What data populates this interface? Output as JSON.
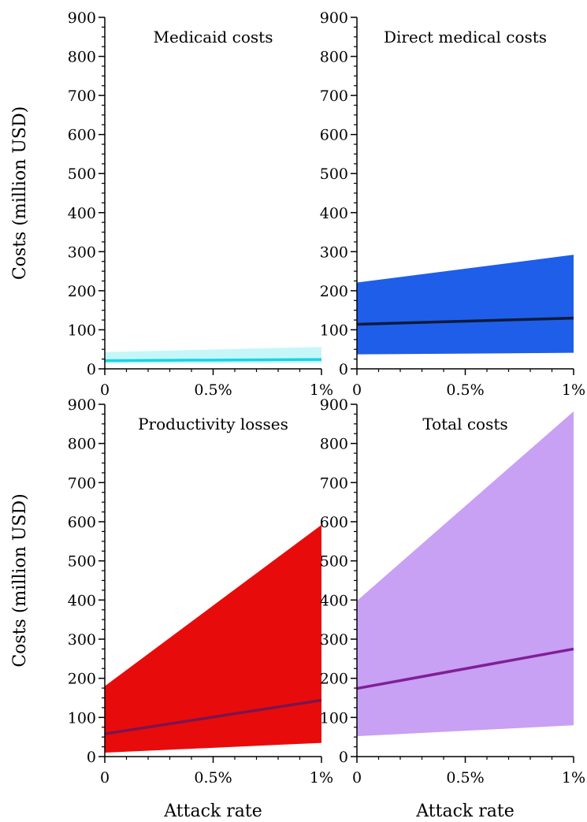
{
  "chart_data": [
    {
      "type": "area",
      "title": "Medicaid costs",
      "xlabel": "",
      "ylabel": "Costs (million USD)",
      "x": [
        0,
        1
      ],
      "xticks": [
        {
          "value": 0,
          "label": "0"
        },
        {
          "value": 0.5,
          "label": "0.5%"
        },
        {
          "value": 1,
          "label": "1%"
        }
      ],
      "yticks": [
        0,
        100,
        200,
        300,
        400,
        500,
        600,
        700,
        800,
        900
      ],
      "xlim": [
        0,
        1
      ],
      "ylim": [
        0,
        900
      ],
      "band": {
        "lower": [
          14,
          15
        ],
        "upper": [
          43,
          56
        ],
        "color": "#c5f7f9"
      },
      "line": {
        "values": [
          21,
          24
        ],
        "color": "#19d3e3"
      }
    },
    {
      "type": "area",
      "title": "Direct medical costs",
      "xlabel": "",
      "ylabel": "",
      "x": [
        0,
        1
      ],
      "xticks": [
        {
          "value": 0,
          "label": "0"
        },
        {
          "value": 0.5,
          "label": "0.5%"
        },
        {
          "value": 1,
          "label": "1%"
        }
      ],
      "yticks": [
        0,
        100,
        200,
        300,
        400,
        500,
        600,
        700,
        800,
        900
      ],
      "xlim": [
        0,
        1
      ],
      "ylim": [
        0,
        900
      ],
      "band": {
        "lower": [
          37,
          41
        ],
        "upper": [
          221,
          292
        ],
        "color": "#1f5ee8"
      },
      "line": {
        "values": [
          114,
          130
        ],
        "color": "#0d1b3d"
      }
    },
    {
      "type": "area",
      "title": "Productivity losses",
      "xlabel": "Attack rate",
      "ylabel": "Costs (million USD)",
      "x": [
        0,
        1
      ],
      "xticks": [
        {
          "value": 0,
          "label": "0"
        },
        {
          "value": 0.5,
          "label": "0.5%"
        },
        {
          "value": 1,
          "label": "1%"
        }
      ],
      "yticks": [
        0,
        100,
        200,
        300,
        400,
        500,
        600,
        700,
        800,
        900
      ],
      "xlim": [
        0,
        1
      ],
      "ylim": [
        0,
        900
      ],
      "band": {
        "lower": [
          10,
          35
        ],
        "upper": [
          180,
          592
        ],
        "color": "#e80b0b"
      },
      "line": {
        "values": [
          58,
          144
        ],
        "color": "#7a1550"
      }
    },
    {
      "type": "area",
      "title": "Total costs",
      "xlabel": "Attack rate",
      "ylabel": "",
      "x": [
        0,
        1
      ],
      "xticks": [
        {
          "value": 0,
          "label": "0"
        },
        {
          "value": 0.5,
          "label": "0.5%"
        },
        {
          "value": 1,
          "label": "1%"
        }
      ],
      "yticks": [
        0,
        100,
        200,
        300,
        400,
        500,
        600,
        700,
        800,
        900
      ],
      "xlim": [
        0,
        1
      ],
      "ylim": [
        0,
        900
      ],
      "band": {
        "lower": [
          52,
          80
        ],
        "upper": [
          398,
          882
        ],
        "color": "#c8a0f4"
      },
      "line": {
        "values": [
          174,
          275
        ],
        "color": "#7f1f96"
      }
    }
  ]
}
